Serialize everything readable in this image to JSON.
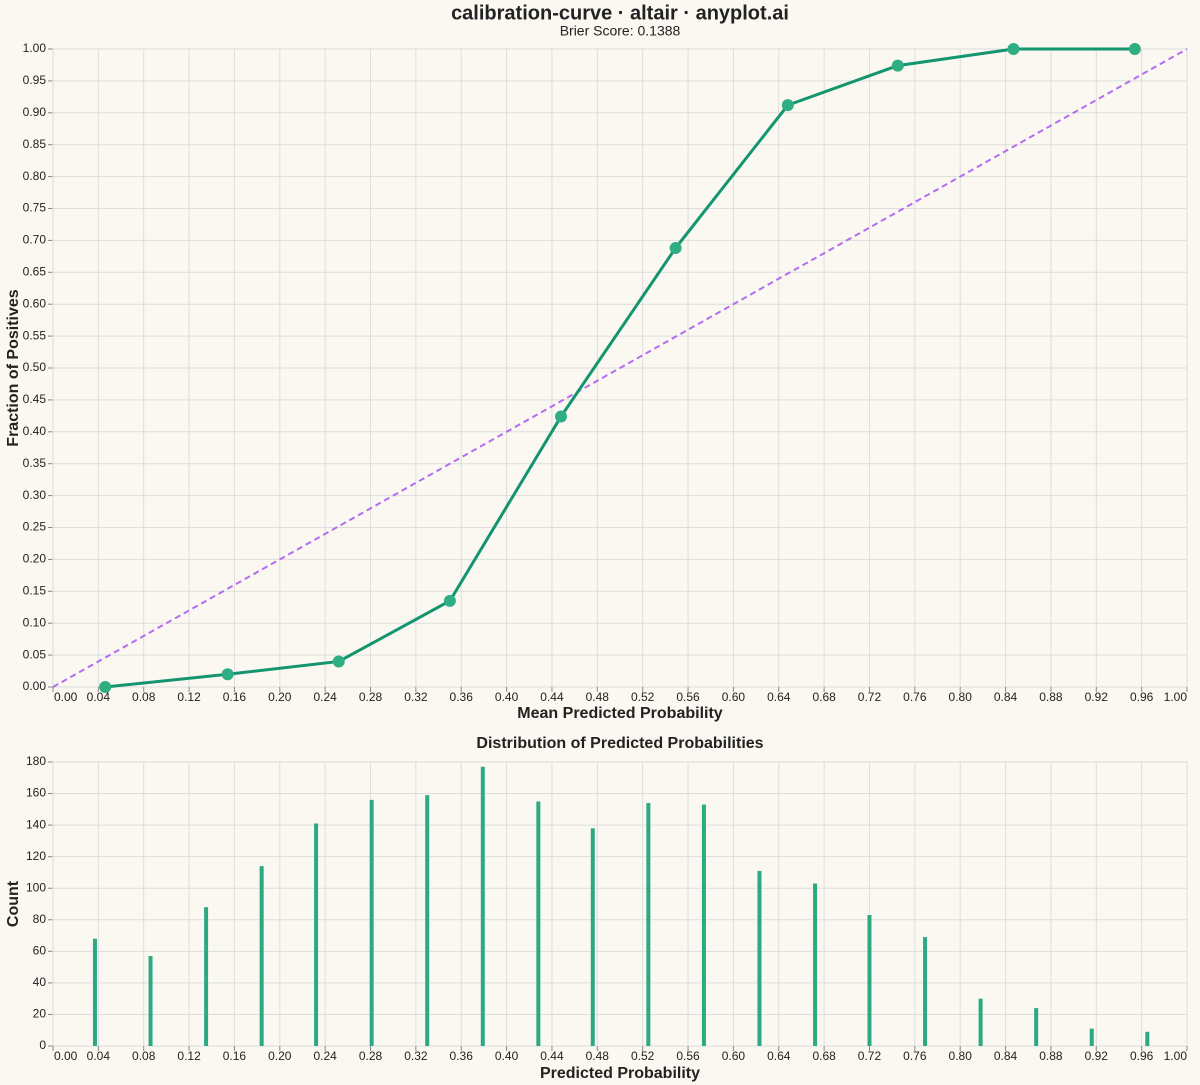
{
  "chart_data": [
    {
      "type": "line",
      "title": "calibration-curve · altair · anyplot.ai",
      "subtitle": "Brier Score: 0.1388",
      "x_label": "Mean Predicted Probability",
      "y_label": "Fraction of Positives",
      "grid": true,
      "xlim": [
        0,
        1
      ],
      "ylim": [
        0,
        1
      ],
      "xticks": [
        {
          "value": 0,
          "label": "0.00"
        },
        0.04,
        0.08,
        0.12,
        0.16,
        {
          "value": 0.2,
          "label": "0.20"
        },
        0.24,
        0.28,
        0.32,
        0.36,
        {
          "value": 0.4,
          "label": "0.40"
        },
        0.44,
        0.48,
        0.52,
        0.56,
        {
          "value": 0.6,
          "label": "0.60"
        },
        0.64,
        0.68,
        0.72,
        0.76,
        {
          "value": 0.8,
          "label": "0.80"
        },
        0.84,
        0.88,
        0.92,
        0.96,
        {
          "value": 1,
          "label": "1.00"
        }
      ],
      "yticks": [
        {
          "value": 0,
          "label": "0.00"
        },
        0.05,
        {
          "value": 0.1,
          "label": "0.10"
        },
        0.15,
        {
          "value": 0.2,
          "label": "0.20"
        },
        0.25,
        {
          "value": 0.3,
          "label": "0.30"
        },
        0.35,
        {
          "value": 0.4,
          "label": "0.40"
        },
        0.45,
        {
          "value": 0.5,
          "label": "0.50"
        },
        0.55,
        {
          "value": 0.6,
          "label": "0.60"
        },
        0.65,
        {
          "value": 0.7,
          "label": "0.70"
        },
        0.75,
        {
          "value": 0.8,
          "label": "0.80"
        },
        0.85,
        {
          "value": 0.9,
          "label": "0.90"
        },
        0.95,
        {
          "value": 1,
          "label": "1.00"
        }
      ],
      "series": [
        {
          "color": "#b36cf2",
          "dashed": true,
          "x": [
            0,
            1
          ],
          "values": [
            0,
            1
          ]
        },
        {
          "color": "#13956f",
          "point_color": "#2fae84",
          "points": true,
          "x": [
            0.046,
            0.154,
            0.252,
            0.35,
            0.448,
            0.549,
            0.648,
            0.745,
            0.847,
            0.954
          ],
          "values": [
            0.0,
            0.02,
            0.04,
            0.135,
            0.424,
            0.688,
            0.912,
            0.974,
            1.0,
            1.0
          ]
        }
      ]
    },
    {
      "type": "bar",
      "title": "Distribution of Predicted Probabilities",
      "x_label": "Predicted Probability",
      "y_label": "Count",
      "grid": true,
      "color": "#2ca982",
      "xlim": [
        0,
        1
      ],
      "ylim": [
        0,
        180
      ],
      "xticks": [
        {
          "value": 0,
          "label": "0.00"
        },
        0.04,
        0.08,
        0.12,
        0.16,
        {
          "value": 0.2,
          "label": "0.20"
        },
        0.24,
        0.28,
        0.32,
        0.36,
        {
          "value": 0.4,
          "label": "0.40"
        },
        0.44,
        0.48,
        0.52,
        0.56,
        {
          "value": 0.6,
          "label": "0.60"
        },
        0.64,
        0.68,
        0.72,
        0.76,
        {
          "value": 0.8,
          "label": "0.80"
        },
        0.84,
        0.88,
        0.92,
        0.96,
        {
          "value": 1,
          "label": "1.00"
        }
      ],
      "yticks": [
        0,
        20,
        40,
        60,
        80,
        100,
        120,
        140,
        160,
        180
      ],
      "x": [
        0.037,
        0.086,
        0.135,
        0.184,
        0.232,
        0.281,
        0.33,
        0.379,
        0.428,
        0.476,
        0.525,
        0.574,
        0.623,
        0.672,
        0.72,
        0.769,
        0.818,
        0.867,
        0.916,
        0.965
      ],
      "values": [
        68,
        57,
        88,
        114,
        141,
        156,
        159,
        177,
        155,
        138,
        154,
        153,
        111,
        103,
        83,
        69,
        30,
        24,
        11,
        9
      ]
    }
  ]
}
